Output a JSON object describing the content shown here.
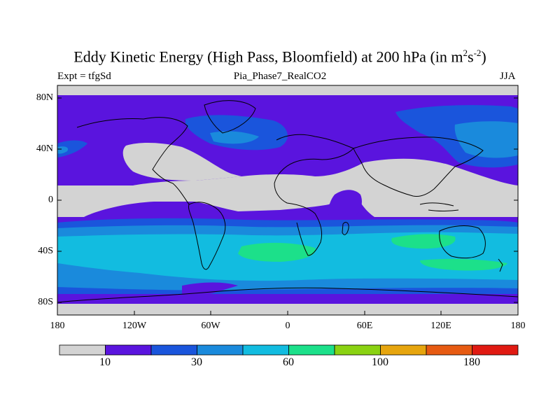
{
  "title_main": "Eddy Kinetic Energy (High Pass, Bloomfield) at 200 hPa (in m",
  "title_sup1": "2",
  "title_mid": "s",
  "title_sup2": "-2",
  "title_end": ")",
  "left_label": "Expt = tfgSd",
  "center_label": "Pia_Phase7_RealCO2",
  "right_label": "JJA",
  "lat_ticks": [
    "80N",
    "40N",
    "0",
    "40S",
    "80S"
  ],
  "lon_ticks": [
    "180",
    "120W",
    "60W",
    "0",
    "60E",
    "120E",
    "180"
  ],
  "colorbar": {
    "colors": [
      "#d3d3d3",
      "#5a14de",
      "#1a55dc",
      "#1a8adc",
      "#12bce0",
      "#1ce08a",
      "#8ad212",
      "#e6a50e",
      "#e65a12",
      "#e01a12"
    ],
    "labels": [
      "10",
      "30",
      "60",
      "100",
      "180"
    ]
  },
  "colors": {
    "gray": "#d3d3d3",
    "purple": "#5a14de",
    "blue": "#1a55dc",
    "light_blue": "#1a8adc",
    "cyan": "#12bce0",
    "green": "#1ce08a"
  }
}
